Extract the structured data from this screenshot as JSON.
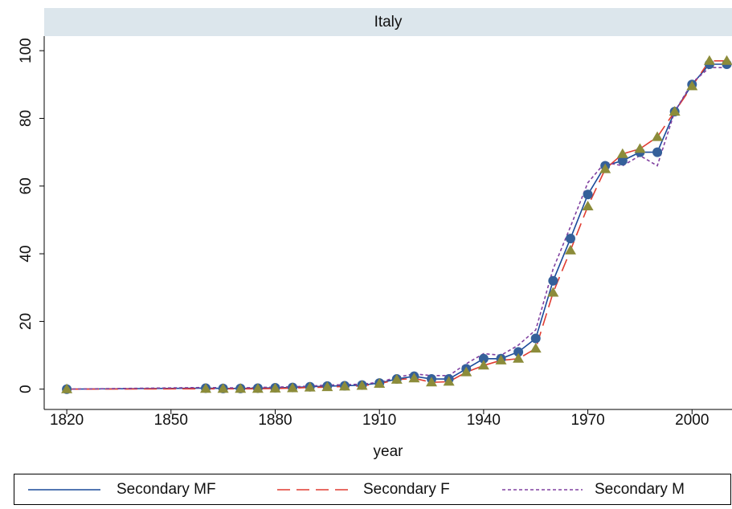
{
  "chart_data": {
    "type": "line",
    "title": "Italy",
    "xlabel": "year",
    "x": [
      1820,
      1860,
      1865,
      1870,
      1875,
      1880,
      1885,
      1890,
      1895,
      1900,
      1905,
      1910,
      1915,
      1920,
      1925,
      1930,
      1935,
      1940,
      1945,
      1950,
      1955,
      1960,
      1965,
      1970,
      1975,
      1980,
      1985,
      1990,
      1995,
      2000,
      2005,
      2010
    ],
    "series": [
      {
        "name": "Secondary MF",
        "color": "#1a4a9a",
        "marker": "circle",
        "marker_color": "#35609a",
        "dash": "solid",
        "values": [
          0,
          0.3,
          0.2,
          0.2,
          0.3,
          0.4,
          0.5,
          0.7,
          0.9,
          1.0,
          1.2,
          1.8,
          3.0,
          3.8,
          3.0,
          3.0,
          6,
          9,
          9,
          11,
          15,
          32,
          44.5,
          57.5,
          66,
          67.5,
          70,
          70,
          82,
          90,
          96,
          96
        ]
      },
      {
        "name": "Secondary F",
        "color": "#e03c31",
        "marker": "triangle",
        "marker_color": "#8c8c3a",
        "dash": "long",
        "values": [
          0,
          0.1,
          0.1,
          0.1,
          0.1,
          0.2,
          0.3,
          0.5,
          0.6,
          0.8,
          1.0,
          1.6,
          2.8,
          3.2,
          2.0,
          2.2,
          5,
          7,
          8.5,
          9,
          12,
          28.5,
          41,
          54,
          65,
          69.5,
          71,
          74.5,
          82,
          89.5,
          97,
          97
        ]
      },
      {
        "name": "Secondary M",
        "color": "#8040a0",
        "marker": null,
        "dash": "short",
        "values": [
          0,
          0.5,
          0.4,
          0.4,
          0.5,
          0.6,
          0.7,
          0.9,
          1.2,
          1.3,
          1.5,
          2.0,
          3.5,
          4.5,
          4.0,
          4.0,
          7.5,
          10.5,
          10,
          13,
          17.5,
          35.5,
          48,
          61,
          67,
          66,
          69,
          66,
          82,
          90.5,
          95,
          95
        ]
      }
    ],
    "xlim": [
      1813.5,
      2011.5
    ],
    "xticks": [
      1820,
      1850,
      1880,
      1910,
      1940,
      1970,
      2000
    ],
    "ylim": [
      -6,
      104.3
    ],
    "yticks": [
      0,
      20,
      40,
      60,
      80,
      100
    ],
    "grid": false
  }
}
